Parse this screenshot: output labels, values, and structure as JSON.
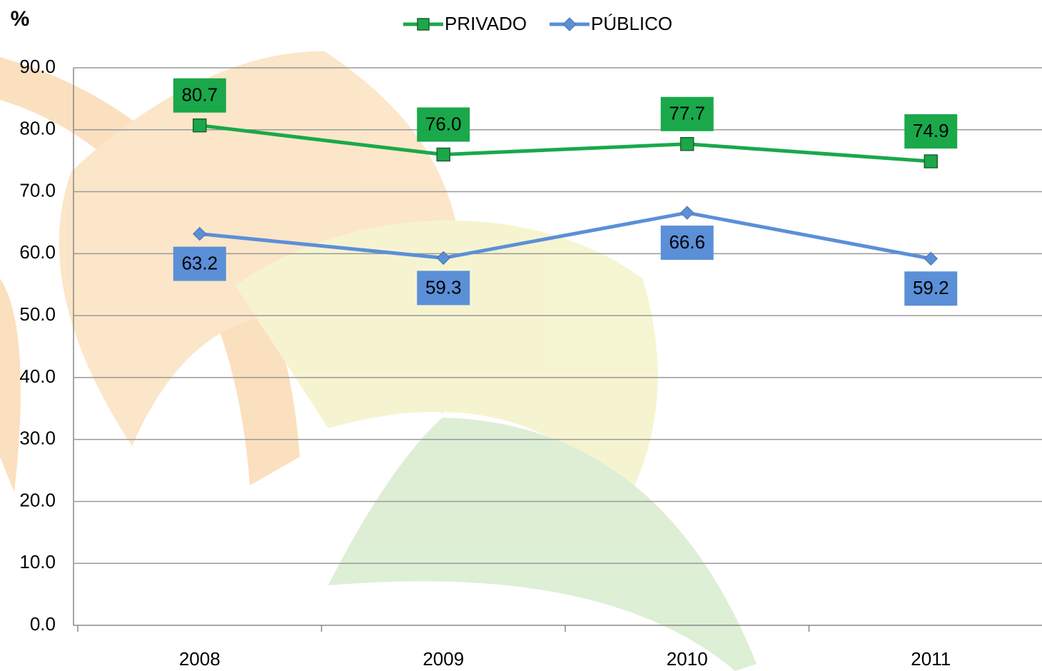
{
  "chart_data": {
    "type": "line",
    "y_label": "%",
    "categories": [
      "2008",
      "2009",
      "2010",
      "2011"
    ],
    "series": [
      {
        "name": "PRIVADO",
        "color": "#1aa84a",
        "values": [
          80.7,
          76.0,
          77.7,
          74.9
        ],
        "value_labels": [
          "80.7",
          "76.0",
          "77.7",
          "74.9"
        ]
      },
      {
        "name": "PÚBLICO",
        "color": "#5b8fd8",
        "values": [
          63.2,
          59.3,
          66.6,
          59.2
        ],
        "value_labels": [
          "63.2",
          "59.3",
          "66.6",
          "59.2"
        ]
      }
    ],
    "ylim": [
      0,
      90
    ],
    "yticks": [
      {
        "value": 0,
        "label": "0.0"
      },
      {
        "value": 10,
        "label": "10.0"
      },
      {
        "value": 20,
        "label": "20.0"
      },
      {
        "value": 30,
        "label": "30.0"
      },
      {
        "value": 40,
        "label": "40.0"
      },
      {
        "value": 50,
        "label": "50.0"
      },
      {
        "value": 60,
        "label": "60.0"
      },
      {
        "value": 70,
        "label": "70.0"
      },
      {
        "value": 80,
        "label": "80.0"
      },
      {
        "value": 90,
        "label": "90.0"
      }
    ],
    "grid": true
  }
}
